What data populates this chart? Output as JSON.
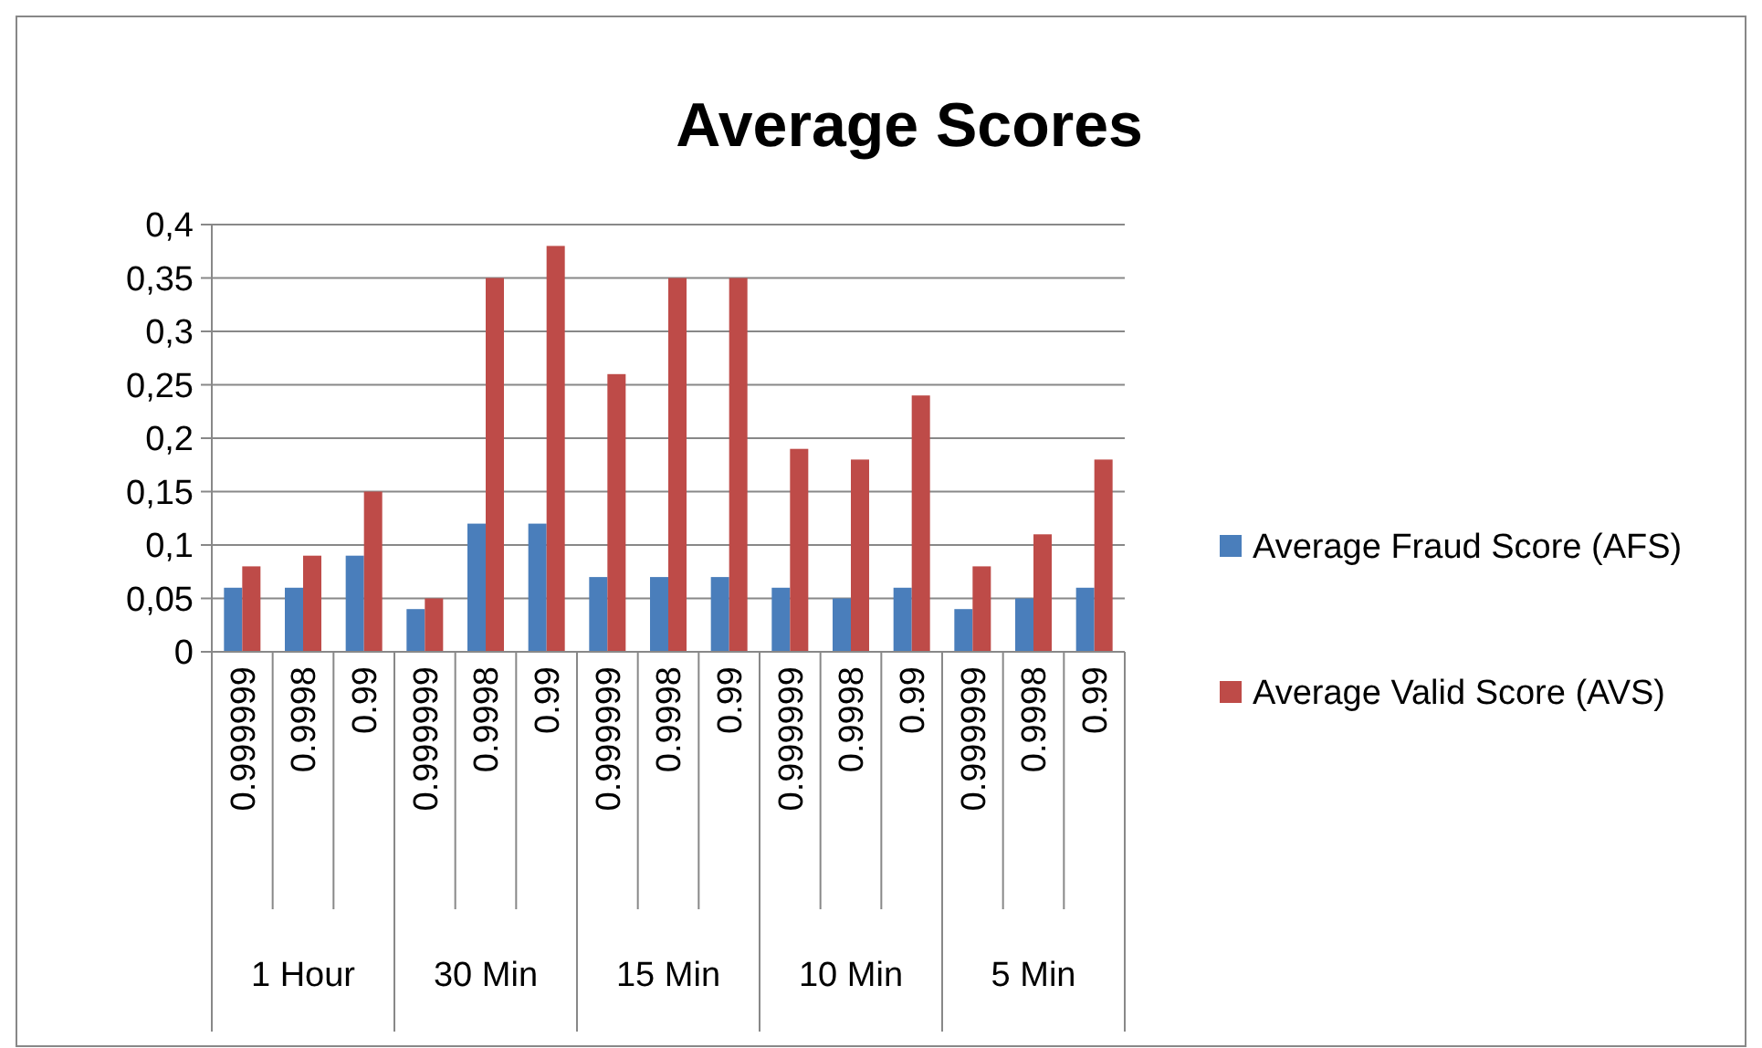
{
  "chart_data": {
    "type": "bar",
    "title": "Average Scores",
    "categories": [
      "0.999999",
      "0.9998",
      "0.99",
      "0.999999",
      "0.9998",
      "0.99",
      "0.999999",
      "0.9998",
      "0.99",
      "0.999999",
      "0.9998",
      "0.99",
      "0.999999",
      "0.9998",
      "0.99"
    ],
    "annotations": [
      "1 Hour",
      "30 Min",
      "15 Min",
      "10 Min",
      "5 Min"
    ],
    "series": [
      {
        "name": "Average Fraud Score (AFS)",
        "color": "#4a7ebb",
        "values": [
          0.06,
          0.06,
          0.09,
          0.04,
          0.12,
          0.12,
          0.07,
          0.07,
          0.07,
          0.06,
          0.05,
          0.06,
          0.04,
          0.05,
          0.06
        ]
      },
      {
        "name": "Average Valid Score (AVS)",
        "color": "#be4b48",
        "values": [
          0.08,
          0.09,
          0.15,
          0.05,
          0.35,
          0.38,
          0.26,
          0.35,
          0.35,
          0.19,
          0.18,
          0.24,
          0.08,
          0.11,
          0.18
        ]
      }
    ],
    "ylim": [
      0,
      0.4
    ],
    "yticks": [
      {
        "value": 0,
        "label": "0"
      },
      {
        "value": 0.05,
        "label": "0,05"
      },
      {
        "value": 0.1,
        "label": "0,1"
      },
      {
        "value": 0.15,
        "label": "0,15"
      },
      {
        "value": 0.2,
        "label": "0,2"
      },
      {
        "value": 0.25,
        "label": "0,25"
      },
      {
        "value": 0.3,
        "label": "0,3"
      },
      {
        "value": 0.35,
        "label": "0,35"
      },
      {
        "value": 0.4,
        "label": "0,4"
      }
    ],
    "grid": "y",
    "legend": "right"
  }
}
